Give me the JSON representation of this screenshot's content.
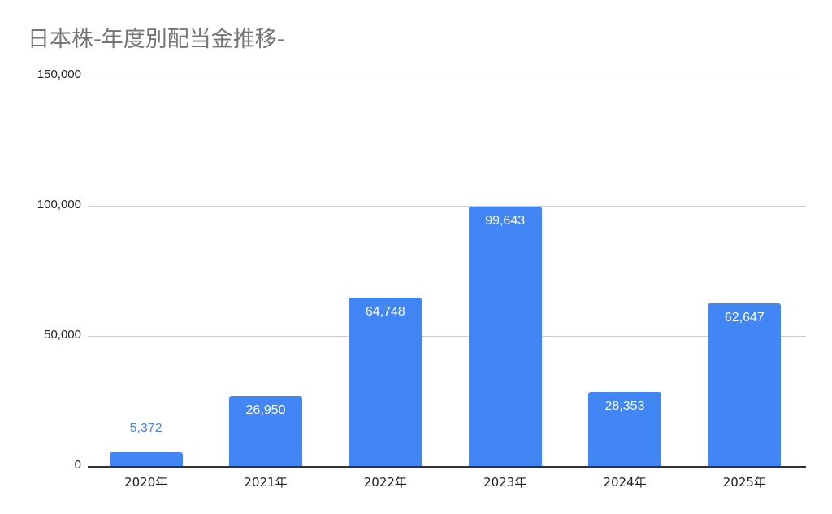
{
  "chart": {
    "title": "日本株-年度別配当金推移-",
    "bar_color": "#4285f4",
    "gridline_color": "#cccccc",
    "title_color": "#757575"
  },
  "chart_data": {
    "type": "bar",
    "title": "日本株-年度別配当金推移-",
    "xlabel": "",
    "ylabel": "",
    "categories": [
      "2020年",
      "2021年",
      "2022年",
      "2023年",
      "2024年",
      "2025年"
    ],
    "values": [
      5372,
      26950,
      64748,
      99643,
      28353,
      62647
    ],
    "data_labels": [
      "5,372",
      "26,950",
      "64,748",
      "99,643",
      "28,353",
      "62,647"
    ],
    "ylim": [
      0,
      150000
    ],
    "yticks": [
      0,
      50000,
      100000,
      150000
    ],
    "ytick_labels": [
      "0",
      "50,000",
      "100,000",
      "150,000"
    ],
    "grid": true,
    "legend": "none"
  }
}
